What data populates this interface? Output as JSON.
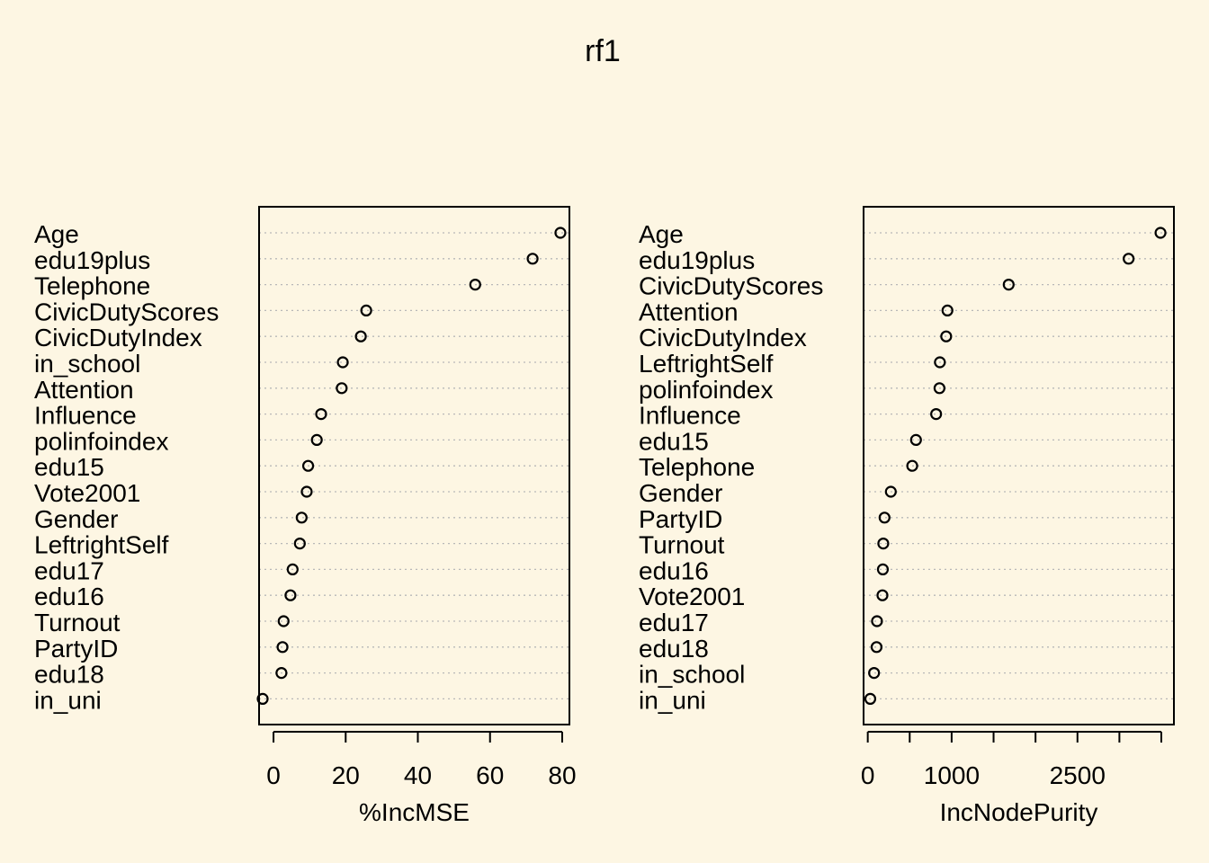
{
  "title": "rf1",
  "chart_data": [
    {
      "type": "scatter",
      "subtype": "dotchart",
      "xlabel": "%IncMSE",
      "ylabel": "",
      "xlim": [
        -4,
        82
      ],
      "xticks": [
        0,
        20,
        40,
        60,
        80
      ],
      "xtick_labels": [
        "0",
        "20",
        "40",
        "60",
        "80"
      ],
      "grid": "dotted horizontal",
      "categories": [
        "Age",
        "edu19plus",
        "Telephone",
        "CivicDutyScores",
        "CivicDutyIndex",
        "in_school",
        "Attention",
        "Influence",
        "polinfoindex",
        "edu15",
        "Vote2001",
        "Gender",
        "LeftrightSelf",
        "edu17",
        "edu16",
        "Turnout",
        "PartyID",
        "edu18",
        "in_uni"
      ],
      "values": [
        79.5,
        71.8,
        55.9,
        25.7,
        24.2,
        19.2,
        18.9,
        13.2,
        12.0,
        9.6,
        9.2,
        7.8,
        7.3,
        5.3,
        4.7,
        2.8,
        2.5,
        2.2,
        -3.0
      ]
    },
    {
      "type": "scatter",
      "subtype": "dotchart",
      "xlabel": "IncNodePurity",
      "ylabel": "",
      "xlim": [
        -50,
        3650
      ],
      "xticks": [
        0,
        500,
        1000,
        1500,
        2000,
        2500,
        3000,
        3500
      ],
      "xtick_labels": [
        "0",
        "",
        "1000",
        "",
        "",
        "2500",
        "",
        ""
      ],
      "grid": "dotted horizontal",
      "categories": [
        "Age",
        "edu19plus",
        "CivicDutyScores",
        "Attention",
        "CivicDutyIndex",
        "LeftrightSelf",
        "polinfoindex",
        "Influence",
        "edu15",
        "Telephone",
        "Gender",
        "PartyID",
        "Turnout",
        "edu16",
        "Vote2001",
        "edu17",
        "edu18",
        "in_school",
        "in_uni"
      ],
      "values": [
        3490,
        3110,
        1680,
        950,
        935,
        860,
        855,
        815,
        575,
        530,
        275,
        200,
        185,
        180,
        175,
        110,
        105,
        75,
        30
      ]
    }
  ]
}
